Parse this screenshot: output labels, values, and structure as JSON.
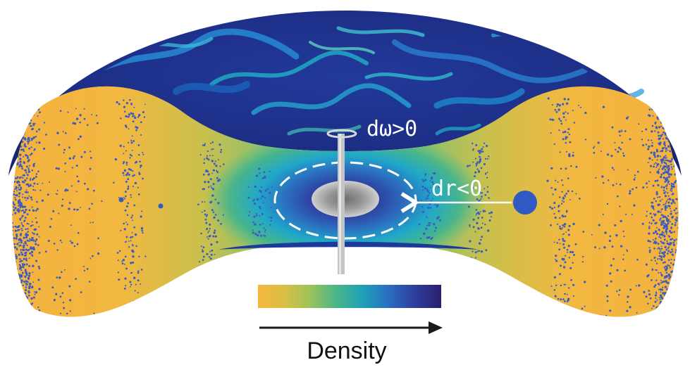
{
  "annotations": {
    "omega_change": "dω>0",
    "radius_change": "dr<0"
  },
  "colorbar": {
    "label": "Density",
    "colors": [
      "#f7b63e",
      "#d9bf45",
      "#9cc35a",
      "#49b58a",
      "#1fa0b8",
      "#2b6dbf",
      "#2f3d9c",
      "#2a1f6e"
    ]
  },
  "colors": {
    "outer_dense": "#f4b13f",
    "mid": "#5fbf85",
    "inner": "#20a8c9",
    "deep": "#2e2a86",
    "core": "#9a9a9a",
    "top_surface_base": "#1b2f8a",
    "turbulence": "#1f7fd0",
    "dots": "#3a5bc0",
    "axis_rod": "#c4c4c4",
    "arrow": "#1a1a1a"
  },
  "icons": [
    "rotation-axis-icon",
    "ring-arrow-icon",
    "probe-particle-icon"
  ]
}
